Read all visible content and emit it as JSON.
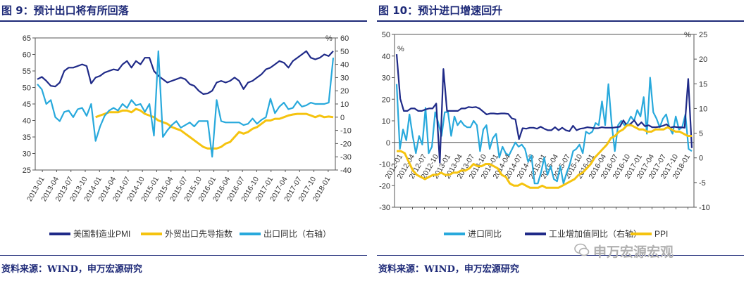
{
  "charts": [
    {
      "title": "图 9：预计出口将有所回落",
      "source": "资料来源：WIND，申万宏源研究",
      "right_unit": "%"
    },
    {
      "title": "图 10：预计进口增速回升",
      "source": "资料来源：WIND，申万宏源研究",
      "left_unit": "%",
      "right_unit": "%"
    }
  ],
  "watermark": "申万宏源宏观",
  "chart_data": [
    {
      "type": "line",
      "x_labels": [
        "2013-01",
        "2013-04",
        "2013-07",
        "2013-10",
        "2014-01",
        "2014-04",
        "2014-07",
        "2014-10",
        "2015-01",
        "2015-04",
        "2015-07",
        "2015-10",
        "2016-01",
        "2016-04",
        "2016-07",
        "2016-10",
        "2017-01",
        "2017-04",
        "2017-07",
        "2017-10",
        "2018-01"
      ],
      "y_left": {
        "min": 25,
        "max": 65,
        "ticks": [
          25,
          30,
          35,
          40,
          45,
          50,
          55,
          60,
          65
        ]
      },
      "y_right": {
        "min": -40,
        "max": 60,
        "ticks": [
          -40,
          -30,
          -20,
          -10,
          0,
          10,
          20,
          30,
          40,
          50,
          60
        ]
      },
      "grid": false,
      "legend_position": "bottom",
      "series": [
        {
          "name": "美国制造业PMI",
          "axis": "left",
          "color": "#1f2a88",
          "values": [
            52.5,
            53.2,
            52,
            50.5,
            50.3,
            51.5,
            55,
            56,
            56,
            56.5,
            57,
            56.5,
            51.2,
            53,
            53.5,
            54.5,
            55,
            55.5,
            55.2,
            57,
            58,
            56,
            58,
            57,
            59,
            59,
            55,
            53.5,
            52.5,
            51.5,
            52,
            52.5,
            53,
            52.5,
            51,
            50.5,
            49,
            48,
            48.2,
            49,
            51.5,
            52,
            51.5,
            52,
            53,
            52,
            49.5,
            51.5,
            52,
            53,
            54,
            55.5,
            56,
            57,
            58,
            57.5,
            56,
            58,
            59,
            60,
            61,
            59,
            58.5,
            59,
            60,
            59.5,
            61
          ]
        },
        {
          "name": "外贸出口先导指数",
          "axis": "left",
          "color": "#f5c30f",
          "values": [
            null,
            null,
            null,
            null,
            null,
            null,
            null,
            null,
            null,
            null,
            null,
            null,
            null,
            41,
            41.5,
            42,
            42.5,
            42.5,
            42.5,
            43,
            43,
            42.5,
            43.5,
            43,
            42,
            41.5,
            41,
            40,
            39.5,
            39,
            38,
            37.5,
            37,
            36,
            35,
            34,
            33,
            32,
            31.5,
            31.5,
            31.5,
            32,
            33,
            33.5,
            35,
            36.5,
            36,
            36.5,
            37.5,
            38,
            39,
            40,
            40,
            40.5,
            40.5,
            41,
            41.5,
            41.8,
            42,
            42,
            42,
            41.5,
            41,
            41.5,
            41,
            41.2,
            41
          ]
        },
        {
          "name": "出口同比（右轴）",
          "axis": "right",
          "color": "#28a9dc",
          "values": [
            25,
            21,
            10,
            13,
            0,
            -3,
            4,
            5,
            0,
            6,
            7,
            1,
            10,
            -18,
            -7,
            1,
            5,
            7,
            5,
            10,
            7,
            13,
            9,
            10,
            4,
            10,
            -14,
            50,
            -15,
            -10,
            -6,
            -3,
            -8,
            -6,
            -4,
            -7,
            -3,
            -3,
            -3,
            -30,
            13,
            -3,
            -4,
            -4,
            -4,
            -4,
            -6,
            -5,
            -1,
            -5,
            -2,
            0,
            14,
            3,
            8,
            11,
            6,
            7,
            12,
            8,
            9,
            11,
            10,
            10,
            10,
            11,
            45
          ]
        }
      ]
    },
    {
      "type": "line",
      "x_labels": [
        "2012-01",
        "2012-04",
        "2012-07",
        "2012-10",
        "2013-01",
        "2013-04",
        "2013-07",
        "2013-10",
        "2014-01",
        "2014-04",
        "2014-07",
        "2014-10",
        "2015-01",
        "2015-04",
        "2015-07",
        "2015-10",
        "2016-01",
        "2016-04",
        "2016-07",
        "2016-10",
        "2017-01",
        "2017-04",
        "2017-07",
        "2017-10",
        "2018-01"
      ],
      "y_left": {
        "min": -30,
        "max": 50,
        "ticks": [
          -30,
          -20,
          -10,
          0,
          10,
          20,
          30,
          40,
          50
        ]
      },
      "y_right": {
        "min": -10,
        "max": 25,
        "ticks": [
          -10,
          -5,
          0,
          5,
          10,
          15,
          20,
          25
        ]
      },
      "grid": false,
      "legend_position": "bottom",
      "series": [
        {
          "name": "进口同比",
          "axis": "left",
          "color": "#28a9dc",
          "values": [
            27,
            -3,
            6,
            1,
            13,
            3,
            -5,
            3,
            -1,
            16,
            -5,
            -2,
            14,
            9,
            3,
            14,
            14,
            3,
            12,
            8,
            10,
            8,
            7,
            7,
            10,
            8,
            -4,
            6,
            8,
            -3,
            2,
            4,
            -7,
            -2,
            -5,
            -6,
            -3,
            0,
            -2,
            -1,
            -3,
            -9,
            -6,
            -19,
            -19,
            -14,
            -7,
            -15,
            -11,
            -17,
            -18,
            -11,
            -19,
            -14,
            -10,
            -4,
            -3,
            -1,
            -5,
            5,
            4,
            5,
            9,
            8,
            19,
            8,
            27,
            9,
            -4,
            8,
            10,
            8,
            9,
            12,
            10,
            15,
            12,
            21,
            4,
            30,
            14,
            11,
            7,
            11,
            13,
            7,
            4,
            12,
            6,
            7,
            13,
            -3,
            -4
          ]
        },
        {
          "name": "工业增加值同比（右轴）",
          "axis": "right",
          "color": "#1f2a88",
          "values": [
            21,
            12,
            9.5,
            9.5,
            10,
            10,
            9.5,
            9.5,
            9.8,
            10,
            10,
            11,
            -1,
            18,
            9.5,
            9.5,
            9.5,
            9.5,
            10,
            10,
            10.3,
            10.2,
            10.3,
            10,
            9.4,
            8.8,
            9,
            9,
            8.9,
            9,
            9,
            8.9,
            8,
            7.8,
            3.8,
            6,
            5.9,
            6.1,
            6.1,
            5.9,
            6.3,
            5.9,
            5.6,
            5.6,
            6.2,
            5.6,
            6.1,
            5.6,
            5.4,
            6.5,
            5.6,
            5.9,
            6,
            6.2,
            6.1,
            6,
            6,
            6.2,
            6.1,
            6.1,
            6.1,
            6.2,
            6.3,
            7.6,
            6.5,
            6.9,
            7.6,
            6.5,
            7.2,
            6.4,
            6.6,
            6.2,
            6.2,
            6.3,
            6.5,
            6.8,
            6.1,
            6.3,
            6.2,
            6.2,
            6.1,
            16,
            2
          ]
        },
        {
          "name": "PPI",
          "axis": "left",
          "color": "#f5c30f",
          "values": [
            -4,
            -4,
            -5,
            -9,
            -13,
            -15,
            -16,
            -17,
            -16,
            -15,
            -15,
            -14,
            -15,
            -15,
            -14,
            -14,
            -13,
            -13,
            -12,
            -10,
            -11,
            -11,
            -10,
            -10,
            -11,
            -12,
            -15,
            -16,
            -19,
            -20,
            -20,
            -19,
            -20,
            -21,
            -21,
            -21,
            -20,
            -21,
            -21,
            -21,
            -21,
            -20,
            -19,
            -18,
            -17,
            -15,
            -14,
            -12,
            -10,
            -7,
            -5,
            -3,
            -1,
            2,
            3,
            5,
            6,
            8,
            8,
            7,
            6,
            6,
            5,
            5,
            6,
            6,
            6,
            7,
            6,
            5,
            5,
            4,
            3,
            3
          ]
        }
      ]
    }
  ]
}
